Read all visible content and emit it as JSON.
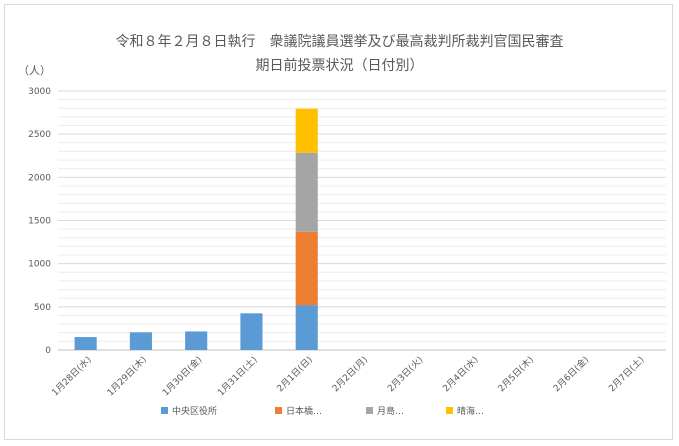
{
  "chart": {
    "title_line1": "令和８年２月８日執行　衆議院議員選挙及び最高裁判所裁判官国民審査",
    "title_line2": "期日前投票状況（日付別）",
    "unit": "（人）"
  },
  "chart_data": {
    "type": "bar",
    "stacked": true,
    "categories": [
      "1月28日(水)",
      "1月29日(木)",
      "1月30日(金)",
      "1月31日(土)",
      "2月1日(日)",
      "2月2日(月)",
      "2月3日(火)",
      "2月4日(水)",
      "2月5日(木)",
      "2月6日(金)",
      "2月7日(土)"
    ],
    "series": [
      {
        "name": "中央区役所",
        "color": "#5b9bd5",
        "values": [
          150,
          205,
          215,
          425,
          520,
          null,
          null,
          null,
          null,
          null,
          null
        ]
      },
      {
        "name": "日本橋…",
        "color": "#ed7d31",
        "values": [
          null,
          null,
          null,
          null,
          850,
          null,
          null,
          null,
          null,
          null,
          null
        ]
      },
      {
        "name": "月島…",
        "color": "#a5a5a5",
        "values": [
          null,
          null,
          null,
          null,
          915,
          null,
          null,
          null,
          null,
          null,
          null
        ]
      },
      {
        "name": "晴海…",
        "color": "#ffc000",
        "values": [
          null,
          null,
          null,
          null,
          510,
          null,
          null,
          null,
          null,
          null,
          null
        ]
      }
    ],
    "ylim": [
      0,
      3000
    ],
    "yticks": [
      0,
      500,
      1000,
      1500,
      2000,
      2500,
      3000
    ],
    "ylabel": "（人）",
    "grid": true,
    "legend": "bottom"
  }
}
